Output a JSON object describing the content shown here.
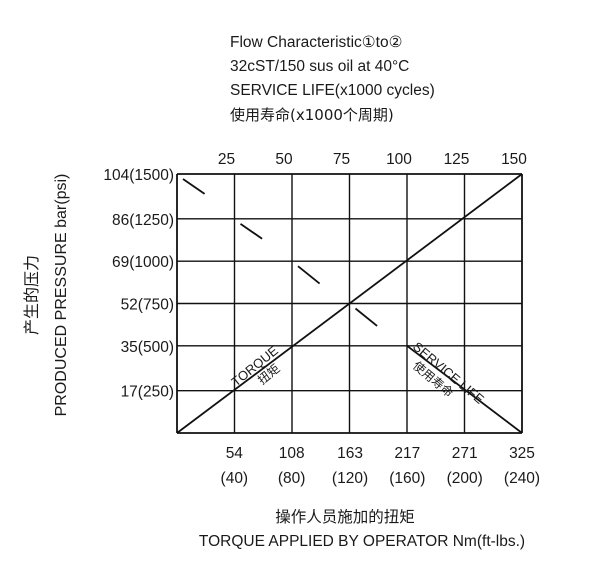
{
  "chart_data": {
    "type": "line",
    "header_lines": [
      "Flow Characteristic①to②",
      "32cST/150 sus oil at 40°C",
      "SERVICE LIFE(x1000 cycles)",
      "使用寿命(x1000个周期)"
    ],
    "ylabel_cn": "产生的压力",
    "ylabel": "PRODUCED PRESSURE bar(psi)",
    "xlabel_cn": "操作人员施加的扭矩",
    "xlabel": "TORQUE APPLIED BY OPERATOR Nm(ft-lbs.)",
    "y_ticks": [
      "104(1500)",
      "86(1250)",
      "69(1000)",
      "52(750)",
      "35(500)",
      "17(250)"
    ],
    "y_values": [
      104,
      86,
      69,
      52,
      35,
      17
    ],
    "y_range": [
      0,
      104
    ],
    "x_ticks_nm": [
      "54",
      "108",
      "163",
      "217",
      "271",
      "325"
    ],
    "x_ticks_ftlbs": [
      "(40)",
      "(80)",
      "(120)",
      "(160)",
      "(200)",
      "(240)"
    ],
    "x_values_nm": [
      54,
      108,
      163,
      217,
      271,
      325
    ],
    "x_range": [
      0,
      325
    ],
    "top_ticks": [
      "25",
      "50",
      "75",
      "100",
      "125",
      "150"
    ],
    "top_values": [
      25,
      50,
      75,
      100,
      125,
      150
    ],
    "top_range": [
      0,
      150
    ],
    "grid": true,
    "series": [
      {
        "name": "TORQUE",
        "name_cn": "扭矩",
        "axis": "bottom",
        "x": [
          0,
          325
        ],
        "y": [
          0,
          104
        ]
      },
      {
        "name": "SERVICE LIFE",
        "name_cn": "使用寿命",
        "axis": "top",
        "x": [
          0,
          12,
          25,
          37,
          50,
          62,
          75,
          87,
          100,
          150
        ],
        "y": [
          104,
          96,
          86,
          78,
          69,
          60,
          52,
          43,
          35,
          0
        ]
      }
    ]
  }
}
